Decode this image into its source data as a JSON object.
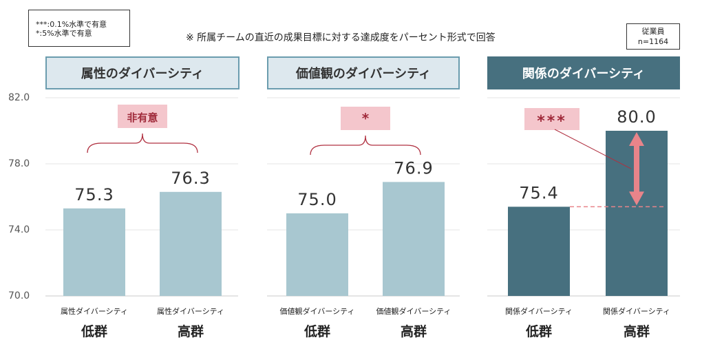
{
  "legend": {
    "line1": "***:0.1%水準で有意",
    "line2": "*:5%水準で有意"
  },
  "note": "※ 所属チームの直近の成果目標に対する達成度をパーセント形式で回答",
  "sample": {
    "line1": "従業員",
    "line2": "n=1164"
  },
  "colors": {
    "light_bar": "#a8c7d0",
    "dark_bar": "#47707f",
    "brace": "#b03040",
    "sig_bg": "#f4c6cc",
    "sig_text": "#a02a3a",
    "arrow": "#e8848a"
  },
  "chart_data": {
    "type": "bar",
    "ylim": [
      70.0,
      82.0
    ],
    "yticks": [
      "70.0",
      "74.0",
      "78.0",
      "82.0"
    ],
    "grid": true,
    "panels": [
      {
        "title": "属性のダイバーシティ",
        "style": "light",
        "significance": "非有意",
        "categories": [
          {
            "sub": "属性ダイバーシティ",
            "group": "低群"
          },
          {
            "sub": "属性ダイバーシティ",
            "group": "高群"
          }
        ],
        "values": [
          75.3,
          76.3
        ],
        "value_labels": [
          "75.3",
          "76.3"
        ]
      },
      {
        "title": "価値観のダイバーシティ",
        "style": "light",
        "significance": "*",
        "categories": [
          {
            "sub": "価値観ダイバーシティ",
            "group": "低群"
          },
          {
            "sub": "価値観ダイバーシティ",
            "group": "高群"
          }
        ],
        "values": [
          75.0,
          76.9
        ],
        "value_labels": [
          "75.0",
          "76.9"
        ]
      },
      {
        "title": "関係のダイバーシティ",
        "style": "dark",
        "significance": "***",
        "categories": [
          {
            "sub": "関係ダイバーシティ",
            "group": "低群"
          },
          {
            "sub": "関係ダイバーシティ",
            "group": "高群"
          }
        ],
        "values": [
          75.4,
          80.0
        ],
        "value_labels": [
          "75.4",
          "80.0"
        ]
      }
    ]
  }
}
